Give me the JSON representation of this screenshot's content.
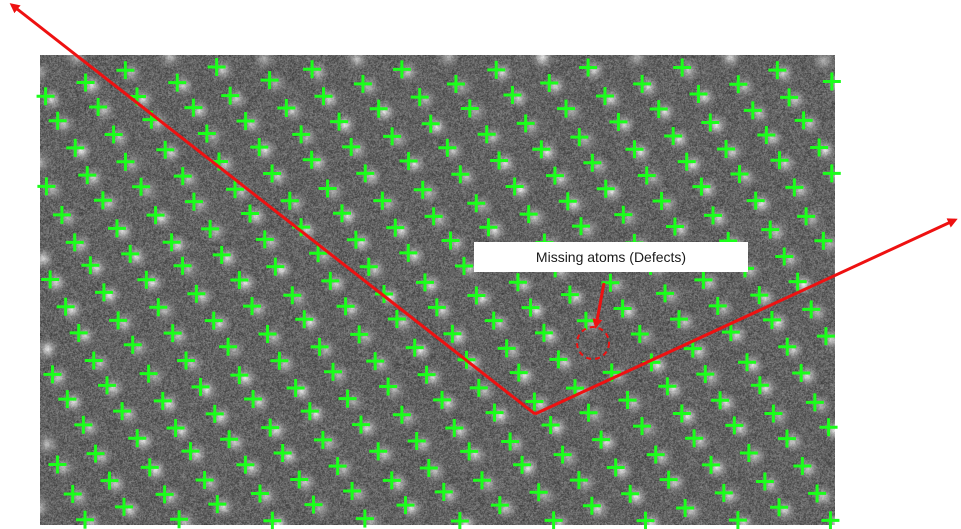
{
  "annotation": {
    "label": "Missing atoms (Defects)"
  },
  "colors": {
    "markers": "#1aff1a",
    "arrows": "#ee1111",
    "background": "#ffffff",
    "micrograph_base": "#5a5a5a"
  },
  "icons": {
    "atom_marker": "plus-icon",
    "direction_arrow": "arrowhead-icon",
    "defect_marker": "dashed-circle-icon"
  }
}
